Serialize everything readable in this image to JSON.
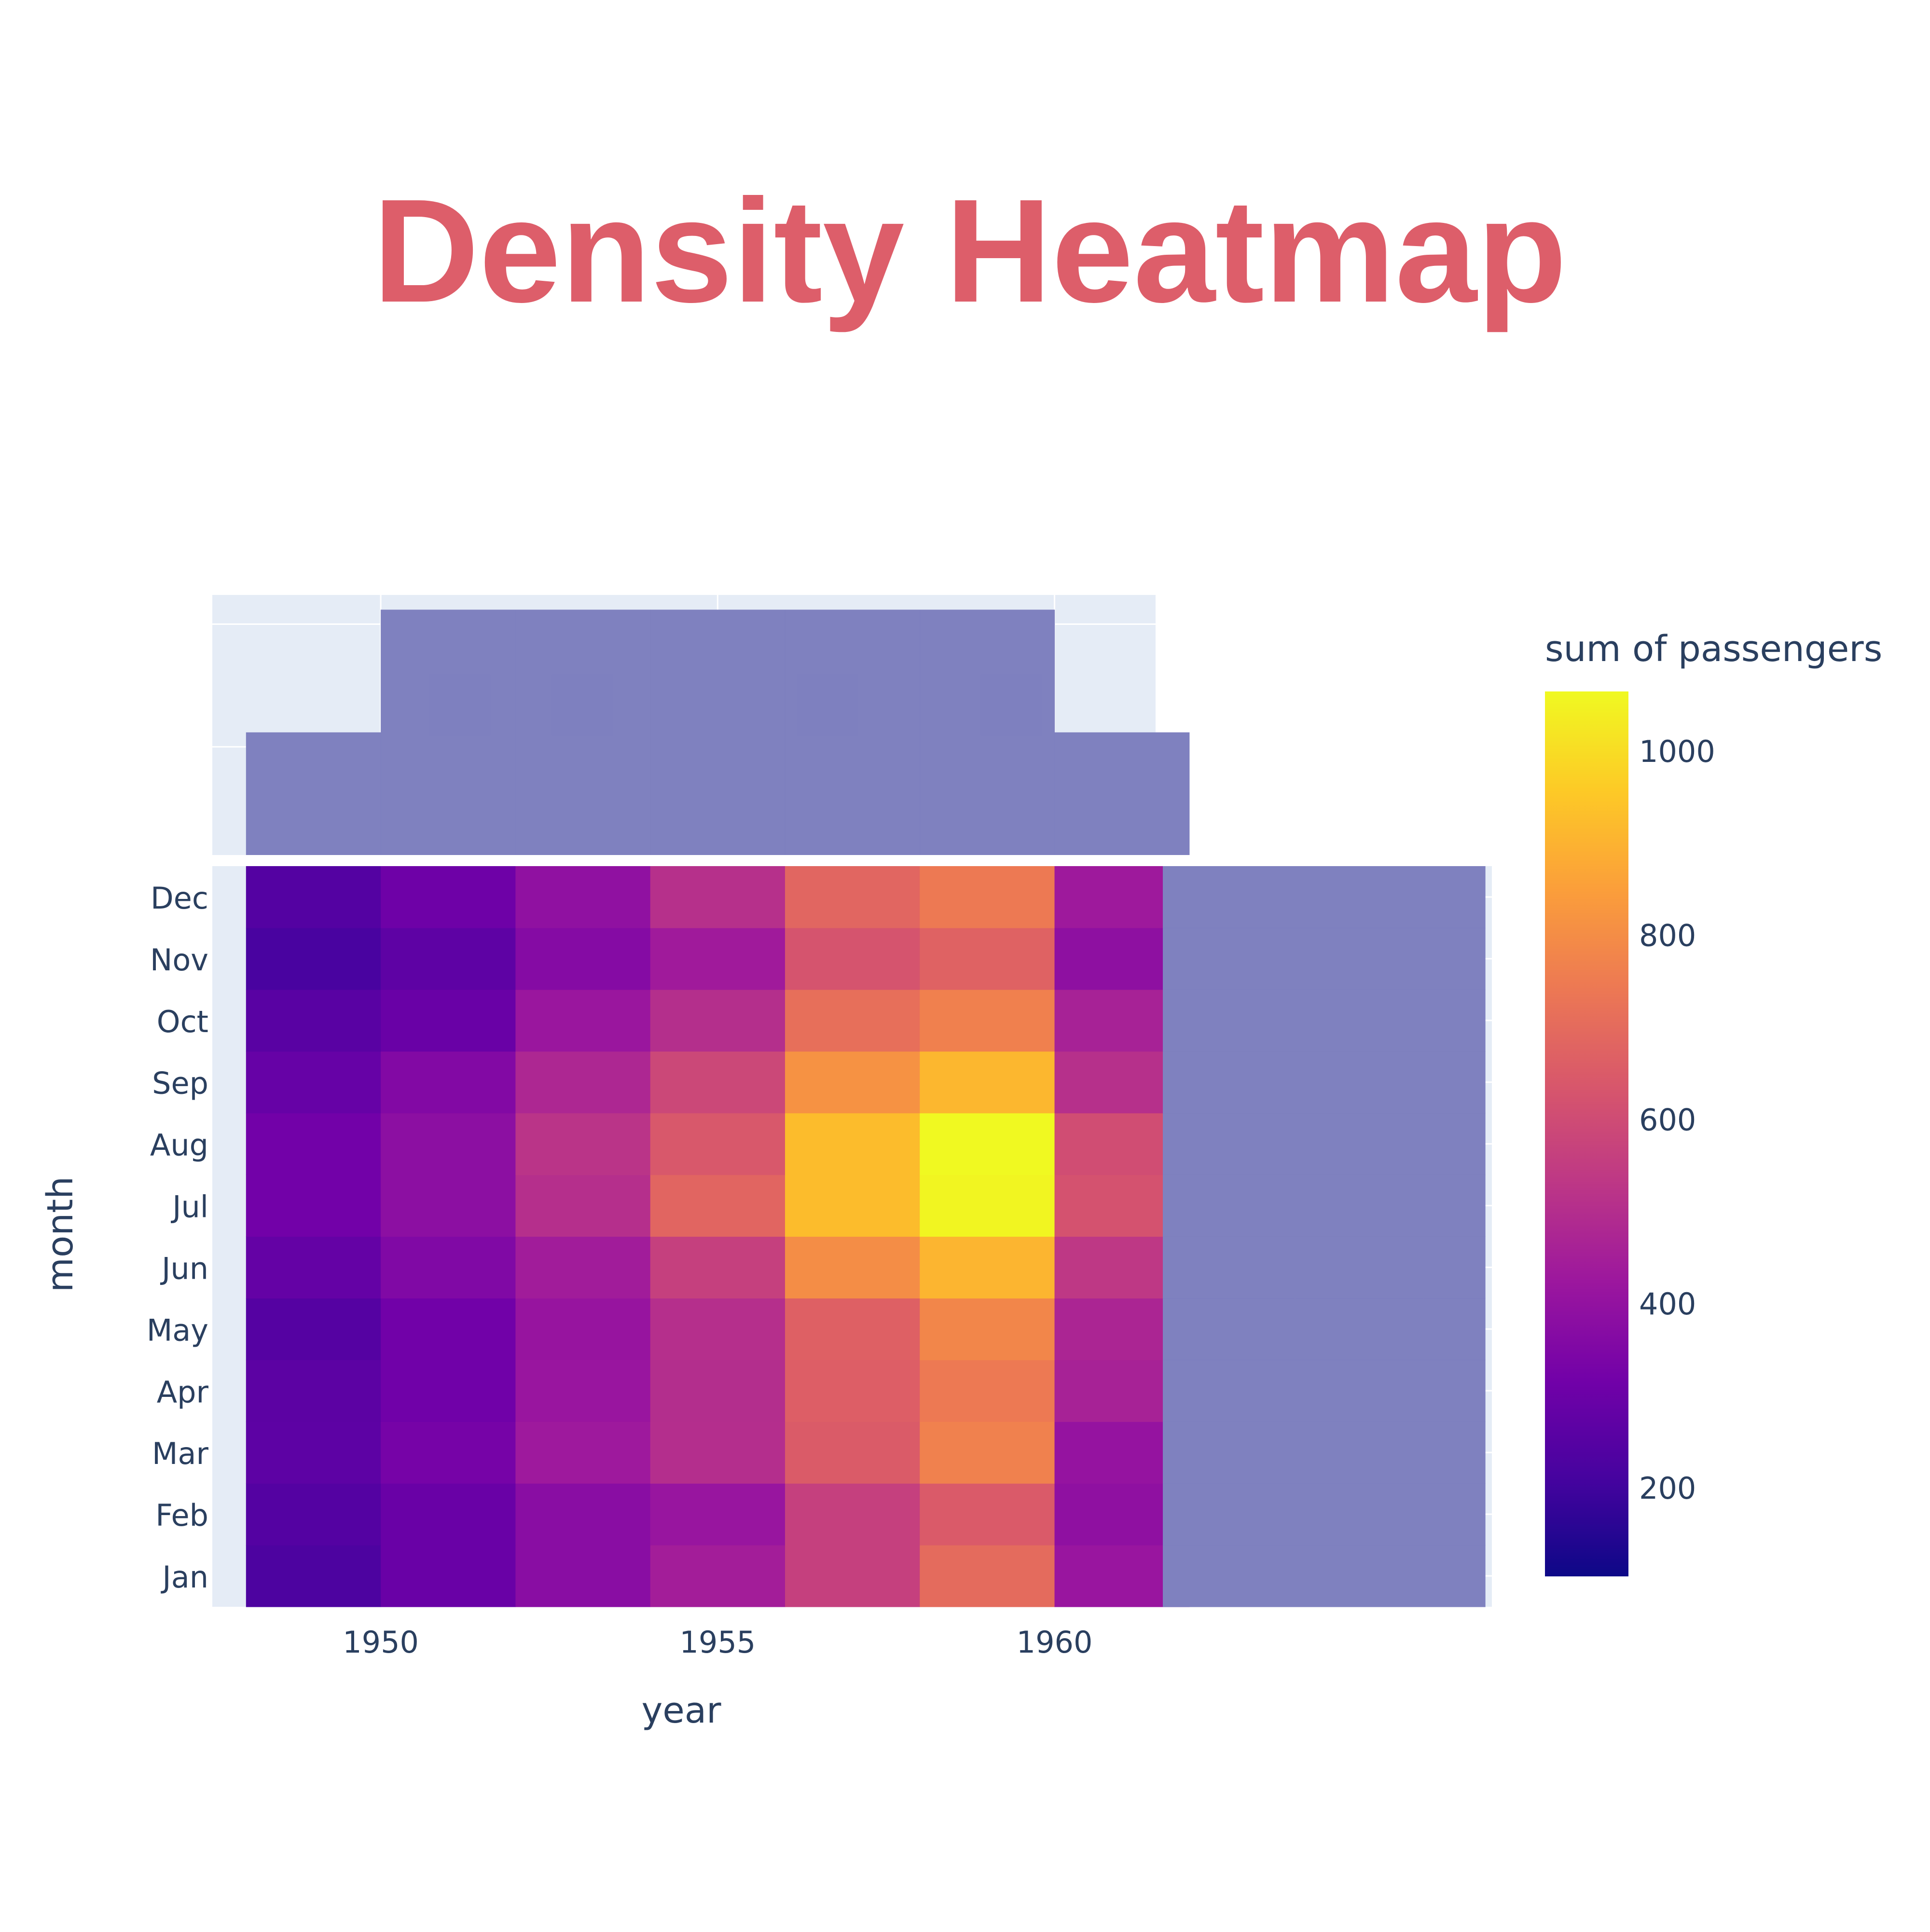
{
  "chart_data": {
    "type": "heatmap",
    "title": "Density Heatmap",
    "title_color": "#dd5e6a",
    "xlabel": "year",
    "ylabel": "month",
    "x_bins": [
      1949,
      1951,
      1953,
      1955,
      1957,
      1959,
      1961
    ],
    "x_bin_width": 2,
    "x_ticks": [
      1950,
      1955,
      1960
    ],
    "xlim": [
      1947.5,
      1961.5
    ],
    "y_categories": [
      "Jan",
      "Feb",
      "Mar",
      "Apr",
      "May",
      "Jun",
      "Jul",
      "Aug",
      "Sep",
      "Oct",
      "Nov",
      "Dec"
    ],
    "z": [
      [
        227,
        295,
        376,
        446,
        562,
        700,
        417
      ],
      [
        244,
        296,
        376,
        413,
        562,
        648,
        391
      ],
      [
        267,
        328,
        430,
        502,
        650,
        768,
        406
      ],
      [
        264,
        313,
        416,
        500,
        661,
        744,
        461
      ],
      [
        246,
        315,
        412,
        504,
        667,
        782,
        472
      ],
      [
        284,
        354,
        440,
        562,
        801,
        907,
        535
      ],
      [
        318,
        384,
        504,
        682,
        924,
        1057,
        622
      ],
      [
        318,
        384,
        521,
        640,
        924,
        1065,
        606
      ],
      [
        289,
        358,
        478,
        588,
        814,
        912,
        508
      ],
      [
        257,
        296,
        419,
        503,
        713,
        765,
        461
      ],
      [
        218,
        268,
        365,
        436,
        627,
        672,
        390
      ],
      [
        244,
        307,
        394,
        507,
        684,
        745,
        432
      ]
    ],
    "colorbar": {
      "title": "sum of passengers",
      "range": [
        104,
        1065
      ],
      "ticks": [
        200,
        400,
        600,
        800,
        1000
      ]
    },
    "colorscale": [
      "#0d0887",
      "#46039f",
      "#7201a8",
      "#9c179e",
      "#bd3786",
      "#d8576b",
      "#ed7953",
      "#fb9f3a",
      "#fdca26",
      "#f0f921"
    ],
    "marginal_x": {
      "type": "histogram",
      "counts": [
        12,
        24,
        24,
        24,
        24,
        24,
        12
      ],
      "color": "#7b7dbd"
    },
    "marginal_y": {
      "type": "histogram",
      "counts": [
        12,
        12,
        12,
        12,
        12,
        12,
        12,
        12,
        12,
        12,
        12,
        12
      ],
      "color": "#7b7dbd"
    },
    "plot_background": "#e5ecf6",
    "grid": true
  }
}
